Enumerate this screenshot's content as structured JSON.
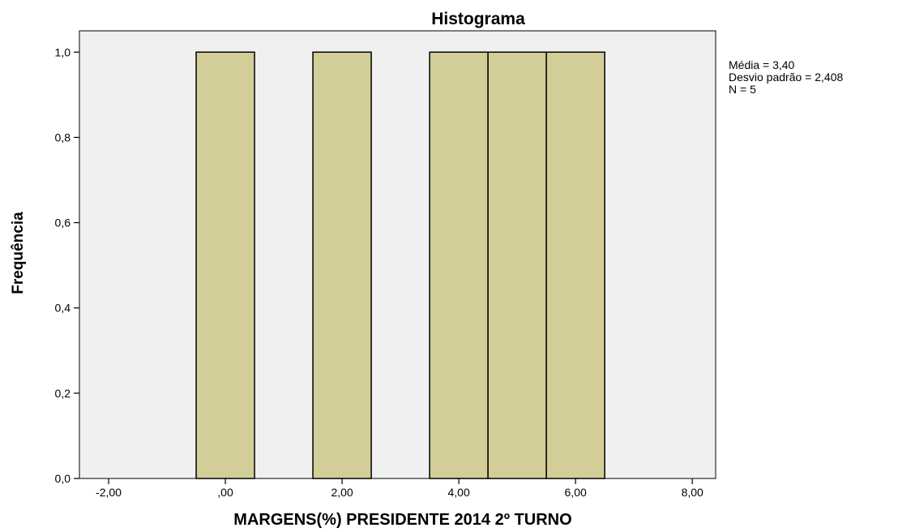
{
  "chart_data": {
    "type": "bar",
    "title": "Histograma",
    "xlabel": "MARGENS(%) PRESIDENTE 2014 2º TURNO",
    "ylabel": "Frequência",
    "xlim": [
      -2.5,
      8.4
    ],
    "ylim": [
      0,
      1.05
    ],
    "bin_width": 1.0,
    "bins": [
      {
        "center": 0,
        "value": 1.0
      },
      {
        "center": 2,
        "value": 1.0
      },
      {
        "center": 4,
        "value": 1.0
      },
      {
        "center": 5,
        "value": 1.0
      },
      {
        "center": 6,
        "value": 1.0
      }
    ],
    "x_ticks": [
      {
        "value": -2,
        "label": "-2,00"
      },
      {
        "value": 0,
        "label": ",00"
      },
      {
        "value": 2,
        "label": "2,00"
      },
      {
        "value": 4,
        "label": "4,00"
      },
      {
        "value": 6,
        "label": "6,00"
      },
      {
        "value": 8,
        "label": "8,00"
      }
    ],
    "y_ticks": [
      {
        "value": 0.0,
        "label": "0,0"
      },
      {
        "value": 0.2,
        "label": "0,2"
      },
      {
        "value": 0.4,
        "label": "0,4"
      },
      {
        "value": 0.6,
        "label": "0,6"
      },
      {
        "value": 0.8,
        "label": "0,8"
      },
      {
        "value": 1.0,
        "label": "1,0"
      }
    ],
    "stats": {
      "mean": "Média = 3,40",
      "std": "Desvio padrão = 2,408",
      "n": "N = 5"
    },
    "grid": false,
    "colors": {
      "plot_background": "#f0f0f0",
      "bar_fill": "#d3ce97",
      "bar_stroke": "#000000",
      "axis": "#000000"
    }
  }
}
